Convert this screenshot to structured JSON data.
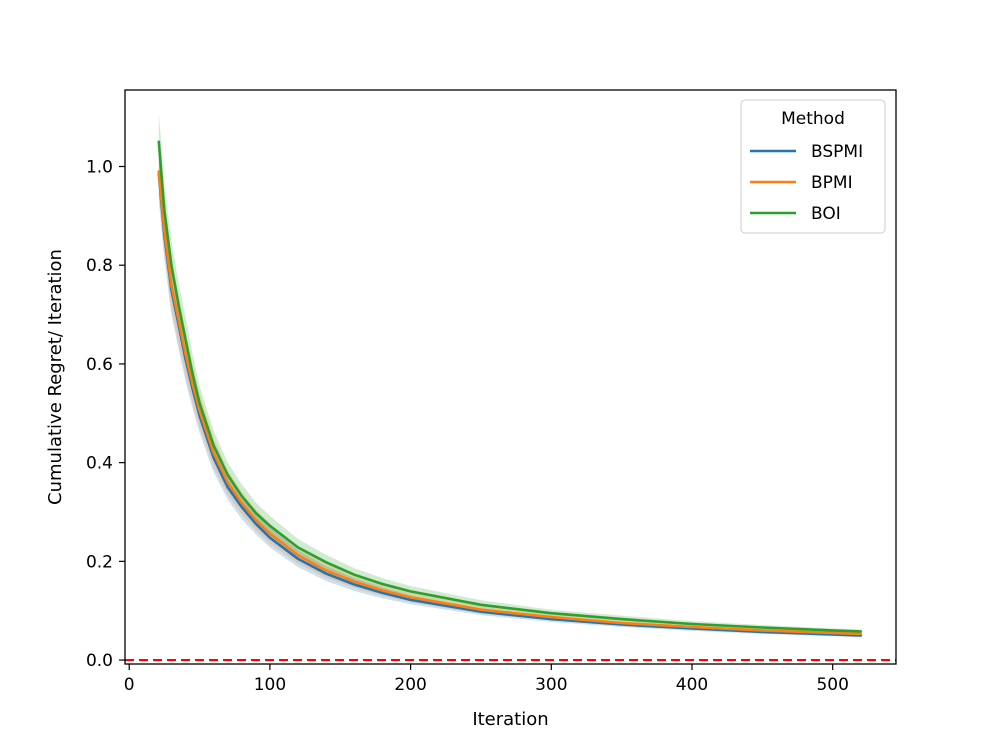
{
  "chart_data": {
    "type": "line",
    "xlabel": "Iteration",
    "ylabel": "Cumulative Regret/ Iteration",
    "xlim": [
      -3,
      545
    ],
    "ylim": [
      -0.008,
      1.155
    ],
    "xticks": [
      0,
      100,
      200,
      300,
      400,
      500
    ],
    "yticks": [
      0.0,
      0.2,
      0.4,
      0.6,
      0.8,
      1.0
    ],
    "xtick_labels": [
      "0",
      "100",
      "200",
      "300",
      "400",
      "500"
    ],
    "ytick_labels": [
      "0.0",
      "0.2",
      "0.4",
      "0.6",
      "0.8",
      "1.0"
    ],
    "grid": false,
    "legend": {
      "title": "Method",
      "position": "top-right"
    },
    "reference_line": {
      "y": 0.0,
      "style": "dashed",
      "color": "#ff0000"
    },
    "x": [
      21,
      25,
      30,
      35,
      40,
      45,
      50,
      60,
      70,
      80,
      90,
      100,
      120,
      140,
      160,
      180,
      200,
      250,
      300,
      350,
      400,
      450,
      500,
      520
    ],
    "series": [
      {
        "name": "BSPMI",
        "color": "#1f77b4",
        "values": [
          0.985,
          0.86,
          0.75,
          0.68,
          0.61,
          0.55,
          0.495,
          0.41,
          0.35,
          0.31,
          0.276,
          0.248,
          0.205,
          0.175,
          0.153,
          0.136,
          0.122,
          0.098,
          0.083,
          0.072,
          0.064,
          0.057,
          0.052,
          0.05
        ],
        "band_low": [
          0.93,
          0.81,
          0.7,
          0.63,
          0.565,
          0.51,
          0.46,
          0.38,
          0.325,
          0.285,
          0.255,
          0.228,
          0.188,
          0.16,
          0.14,
          0.125,
          0.113,
          0.091,
          0.077,
          0.067,
          0.059,
          0.053,
          0.048,
          0.046
        ],
        "band_high": [
          1.04,
          0.91,
          0.8,
          0.73,
          0.655,
          0.59,
          0.53,
          0.44,
          0.375,
          0.335,
          0.297,
          0.268,
          0.222,
          0.19,
          0.166,
          0.147,
          0.131,
          0.105,
          0.089,
          0.077,
          0.069,
          0.061,
          0.056,
          0.054
        ]
      },
      {
        "name": "BPMI",
        "color": "#ff7f0e",
        "values": [
          0.99,
          0.87,
          0.76,
          0.69,
          0.62,
          0.56,
          0.505,
          0.42,
          0.36,
          0.318,
          0.284,
          0.256,
          0.212,
          0.181,
          0.159,
          0.141,
          0.127,
          0.102,
          0.087,
          0.075,
          0.067,
          0.06,
          0.055,
          0.053
        ],
        "band_low": [
          0.94,
          0.82,
          0.71,
          0.64,
          0.575,
          0.52,
          0.47,
          0.39,
          0.335,
          0.295,
          0.263,
          0.236,
          0.195,
          0.166,
          0.146,
          0.13,
          0.117,
          0.094,
          0.08,
          0.069,
          0.062,
          0.055,
          0.051,
          0.049
        ],
        "band_high": [
          1.05,
          0.92,
          0.81,
          0.74,
          0.665,
          0.6,
          0.54,
          0.45,
          0.385,
          0.341,
          0.305,
          0.276,
          0.229,
          0.196,
          0.172,
          0.152,
          0.137,
          0.11,
          0.094,
          0.081,
          0.072,
          0.065,
          0.059,
          0.057
        ]
      },
      {
        "name": "BOI",
        "color": "#2ca02c",
        "values": [
          1.05,
          0.91,
          0.8,
          0.72,
          0.65,
          0.58,
          0.52,
          0.435,
          0.375,
          0.332,
          0.298,
          0.272,
          0.228,
          0.198,
          0.173,
          0.154,
          0.139,
          0.112,
          0.095,
          0.083,
          0.073,
          0.066,
          0.06,
          0.058
        ],
        "band_low": [
          1.0,
          0.86,
          0.75,
          0.675,
          0.605,
          0.54,
          0.485,
          0.405,
          0.35,
          0.308,
          0.277,
          0.252,
          0.211,
          0.183,
          0.16,
          0.142,
          0.128,
          0.103,
          0.088,
          0.076,
          0.067,
          0.061,
          0.056,
          0.054
        ],
        "band_high": [
          1.11,
          0.96,
          0.85,
          0.765,
          0.695,
          0.62,
          0.555,
          0.465,
          0.4,
          0.356,
          0.319,
          0.292,
          0.245,
          0.213,
          0.186,
          0.166,
          0.15,
          0.121,
          0.102,
          0.09,
          0.079,
          0.071,
          0.064,
          0.062
        ]
      }
    ]
  }
}
